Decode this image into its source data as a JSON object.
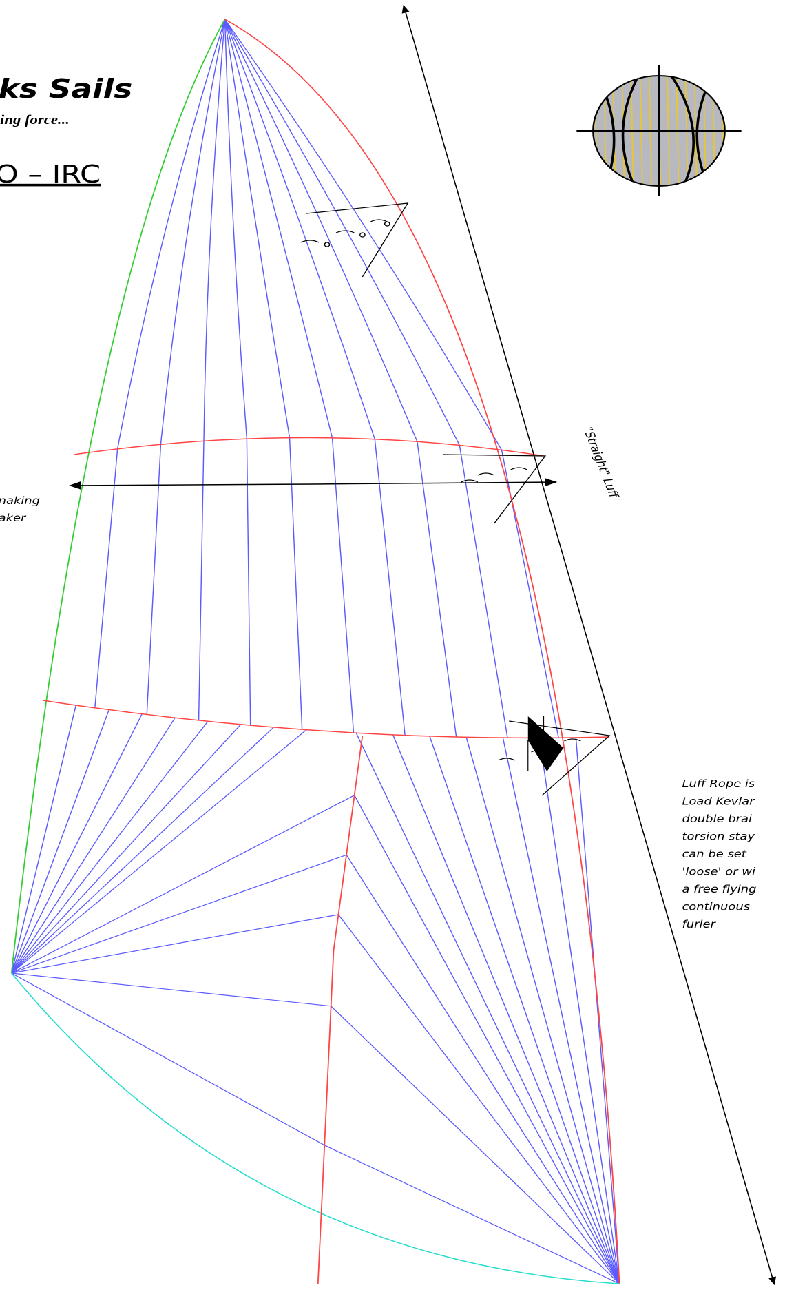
{
  "header": {
    "brand": "ks Sails",
    "tagline": "ing force...",
    "model": "O – IRC"
  },
  "left_note": [
    "naking",
    "aker"
  ],
  "luff_label": "\"Straight\" Luff",
  "luff_note": [
    "Luff Rope is",
    "Load Kevlar",
    "double brai",
    "torsion stay",
    "can be set",
    "'loose' or wi",
    "a free flying",
    "continuous",
    "furler"
  ]
}
